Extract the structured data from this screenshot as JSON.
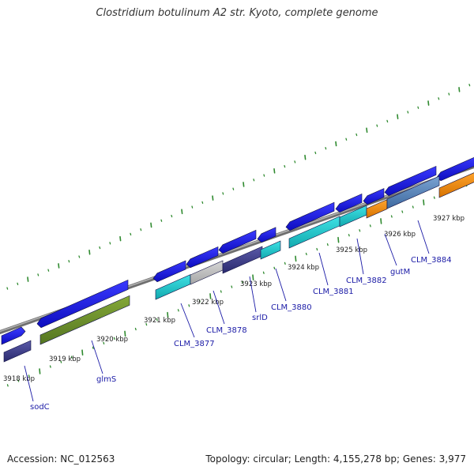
{
  "title": "Clostridium botulinum A2 str. Kyoto, complete genome",
  "footer": {
    "accession": "Accession: NC_012563",
    "summary": "Topology: circular; Length: 4,155,278 bp; Genes: 3,977"
  },
  "colors": {
    "cds_forward": "#1f1fe0",
    "cds_cyan": "#19c6cc",
    "cds_grey": "#bcbcbc",
    "cds_olive": "#6c8f2b",
    "cds_navy": "#3c3c88",
    "cds_orange": "#f28c0c",
    "cds_steel": "#4f7fb6",
    "backbone": "#8c8c8c",
    "ticks": "#2f8a2f",
    "label": "#1a1aa6"
  },
  "scale_ticks": [
    {
      "label": "3918 kbp"
    },
    {
      "label": "3919 kbp"
    },
    {
      "label": "3920 kbp"
    },
    {
      "label": "3921 kbp"
    },
    {
      "label": "3922 kbp"
    },
    {
      "label": "3923 kbp"
    },
    {
      "label": "3924 kbp"
    },
    {
      "label": "3925 kbp"
    },
    {
      "label": "3926 kbp"
    },
    {
      "label": "3927 kbp"
    }
  ],
  "gene_labels": [
    {
      "name": "sodC"
    },
    {
      "name": "glmS"
    },
    {
      "name": "CLM_3877"
    },
    {
      "name": "CLM_3878"
    },
    {
      "name": "srlD"
    },
    {
      "name": "CLM_3880"
    },
    {
      "name": "CLM_3881"
    },
    {
      "name": "CLM_3882"
    },
    {
      "name": "gutM"
    },
    {
      "name": "CLM_3884"
    }
  ]
}
